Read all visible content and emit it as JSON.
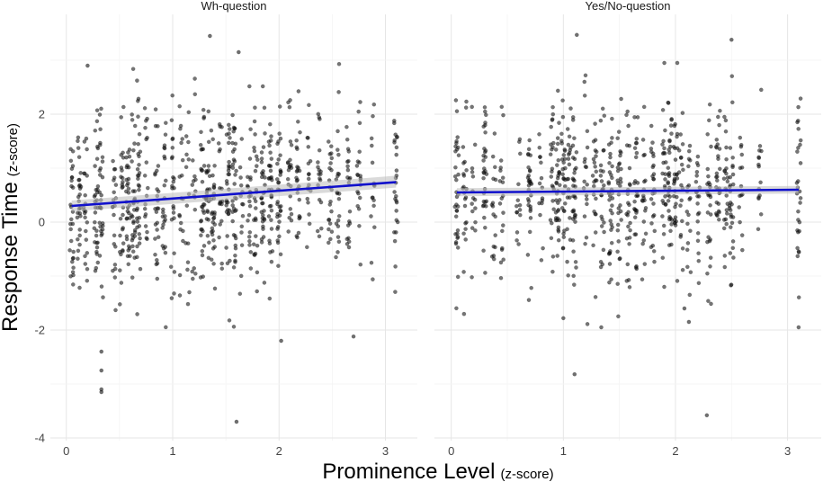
{
  "chart_data": {
    "type": "scatter",
    "xlabel_main": "Prominence Level",
    "xlabel_sub": "(z-score)",
    "ylabel_main": "Response Time",
    "ylabel_sub": "(z-score)",
    "xlim": [
      -0.15,
      3.3
    ],
    "ylim": [
      -4.05,
      3.85
    ],
    "x_ticks": [
      0,
      1,
      2,
      3
    ],
    "x_tick_labels": [
      "0",
      "1",
      "2",
      "3"
    ],
    "y_ticks": [
      -4,
      -2,
      0,
      2
    ],
    "y_tick_labels": [
      "-4",
      "-2",
      "0",
      "2"
    ],
    "grid": true,
    "colors": {
      "points": "#111111",
      "fit": "#1010cc",
      "band": "#bbbbbb",
      "grid": "#ebebeb"
    },
    "panels": [
      {
        "label": "Wh-question",
        "x_positions": [
          0.05,
          0.12,
          0.18,
          0.28,
          0.33,
          0.45,
          0.52,
          0.58,
          0.63,
          0.68,
          0.75,
          0.85,
          0.92,
          1.0,
          1.08,
          1.14,
          1.2,
          1.28,
          1.33,
          1.38,
          1.45,
          1.52,
          1.58,
          1.65,
          1.72,
          1.78,
          1.85,
          1.92,
          2.0,
          2.1,
          2.18,
          2.28,
          2.38,
          2.48,
          2.55,
          2.65,
          2.75,
          2.88,
          3.1
        ],
        "extremes": [
          [
            0.33,
            -3.15
          ],
          [
            0.33,
            -3.1
          ],
          [
            0.33,
            -2.75
          ],
          [
            0.33,
            -2.4
          ],
          [
            1.6,
            -3.7
          ],
          [
            2.02,
            -2.2
          ],
          [
            2.7,
            -2.12
          ],
          [
            1.35,
            3.45
          ],
          [
            1.62,
            3.15
          ],
          [
            0.2,
            2.9
          ]
        ],
        "fit": {
          "x": [
            0.05,
            3.1
          ],
          "y": [
            0.3,
            0.74
          ],
          "se_low": [
            0.2,
            0.64
          ],
          "se_high": [
            0.4,
            0.86
          ]
        }
      },
      {
        "label": "Yes/No-question",
        "x_positions": [
          0.05,
          0.12,
          0.2,
          0.3,
          0.38,
          0.45,
          0.6,
          0.7,
          0.8,
          0.9,
          0.95,
          1.0,
          1.05,
          1.1,
          1.2,
          1.28,
          1.35,
          1.42,
          1.5,
          1.58,
          1.65,
          1.72,
          1.8,
          1.9,
          1.95,
          2.0,
          2.05,
          2.12,
          2.2,
          2.3,
          2.38,
          2.45,
          2.5,
          2.58,
          2.75,
          3.1
        ],
        "extremes": [
          [
            1.1,
            -2.82
          ],
          [
            2.28,
            -3.58
          ],
          [
            1.12,
            3.47
          ],
          [
            2.5,
            3.38
          ],
          [
            2.12,
            -1.85
          ],
          [
            2.08,
            -1.6
          ],
          [
            1.0,
            -1.78
          ]
        ],
        "fit": {
          "x": [
            0.05,
            3.1
          ],
          "y": [
            0.55,
            0.6
          ],
          "se_low": [
            0.48,
            0.53
          ],
          "se_high": [
            0.63,
            0.67
          ]
        }
      }
    ]
  }
}
